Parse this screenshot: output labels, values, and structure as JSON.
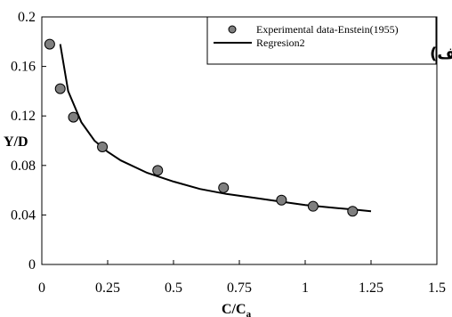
{
  "chart_data": {
    "type": "scatter",
    "xlabel": "C/C",
    "xlabel_sub": "a",
    "ylabel": "Y/D",
    "xlim": [
      0,
      1.5
    ],
    "ylim": [
      0,
      0.2
    ],
    "x_ticks": [
      "0",
      "0.25",
      "0.5",
      "0.75",
      "1",
      "1.25",
      "1.5"
    ],
    "y_ticks": [
      "0",
      "0.04",
      "0.08",
      "0.12",
      "0.16",
      "0.2"
    ],
    "grid": false,
    "legend_position": "top-right",
    "panel_label": "(الف)",
    "series": [
      {
        "name": "Experimental data-Enstein(1955)",
        "kind": "scatter",
        "marker_color": "#7f7f7f",
        "x": [
          0.03,
          0.07,
          0.12,
          0.23,
          0.44,
          0.69,
          0.91,
          1.03,
          1.18
        ],
        "y": [
          0.178,
          0.142,
          0.119,
          0.095,
          0.076,
          0.062,
          0.052,
          0.047,
          0.043
        ]
      },
      {
        "name": "Regresion2",
        "kind": "line",
        "line_color": "#000000",
        "x": [
          0.07,
          0.1,
          0.15,
          0.2,
          0.25,
          0.3,
          0.4,
          0.5,
          0.6,
          0.7,
          0.8,
          0.9,
          1.0,
          1.1,
          1.2,
          1.25
        ],
        "y": [
          0.178,
          0.14,
          0.115,
          0.1,
          0.091,
          0.084,
          0.074,
          0.067,
          0.061,
          0.057,
          0.054,
          0.051,
          0.048,
          0.046,
          0.044,
          0.043
        ]
      }
    ]
  }
}
